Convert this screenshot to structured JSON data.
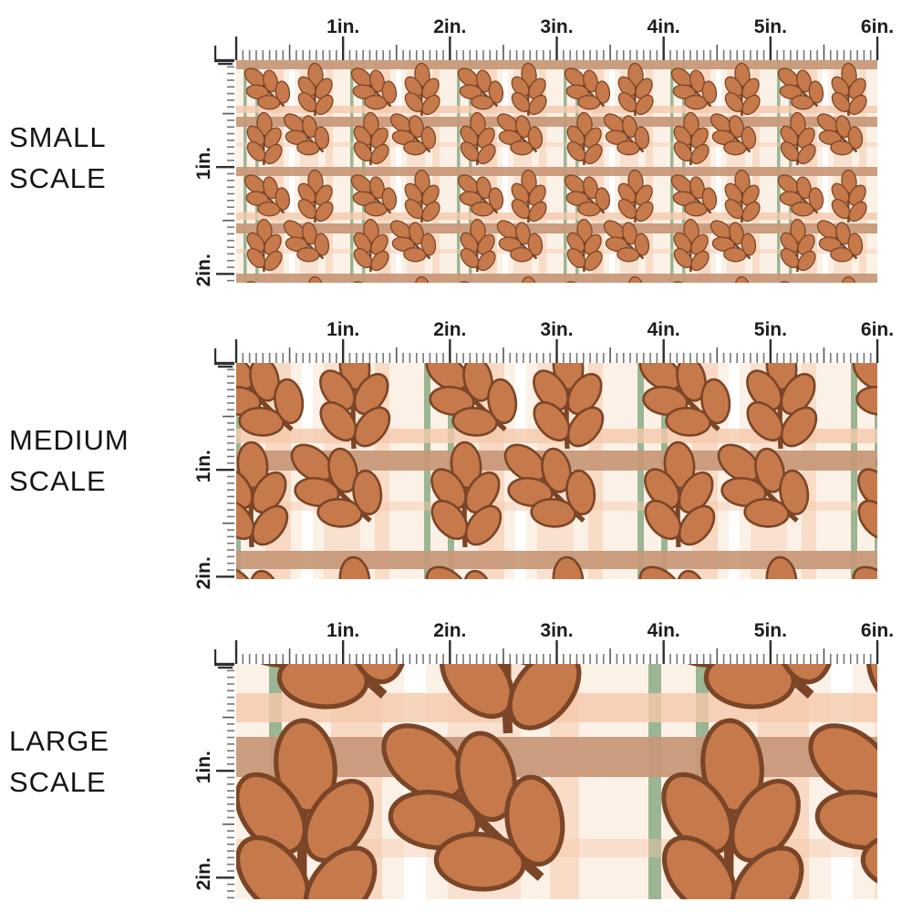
{
  "title": "Fabric pattern scale comparison",
  "panels": [
    {
      "name": "small-scale",
      "label": "SMALL SCALE",
      "label_lines": [
        "SMALL",
        "SCALE"
      ],
      "pattern_scale": 1
    },
    {
      "name": "medium-scale",
      "label": "MEDIUM SCALE",
      "label_lines": [
        "MEDIUM",
        "SCALE"
      ],
      "pattern_scale": 2
    },
    {
      "name": "large-scale",
      "label": "LARGE SCALE",
      "label_lines": [
        "LARGE",
        "SCALE"
      ],
      "pattern_scale": 4
    }
  ],
  "ruler": {
    "horizontal_labels": [
      "1in.",
      "2in.",
      "3in.",
      "4in.",
      "5in.",
      "6in."
    ],
    "vertical_labels": [
      "1in.",
      "2in."
    ],
    "unit": "in.",
    "horizontal_inches": 6,
    "vertical_inches": 2
  },
  "colors": {
    "leaf": "#c6794a",
    "leaf_outline": "#7b4527",
    "cream": "#fcf1e6",
    "tan": "#c79878",
    "peach": "#f5c9ab",
    "sage": "#9cb592",
    "white_stripe": "#ffffff",
    "tick_major": "#2f2f2f",
    "tick_minor": "#767676",
    "label_text": "#1c1c1c"
  }
}
